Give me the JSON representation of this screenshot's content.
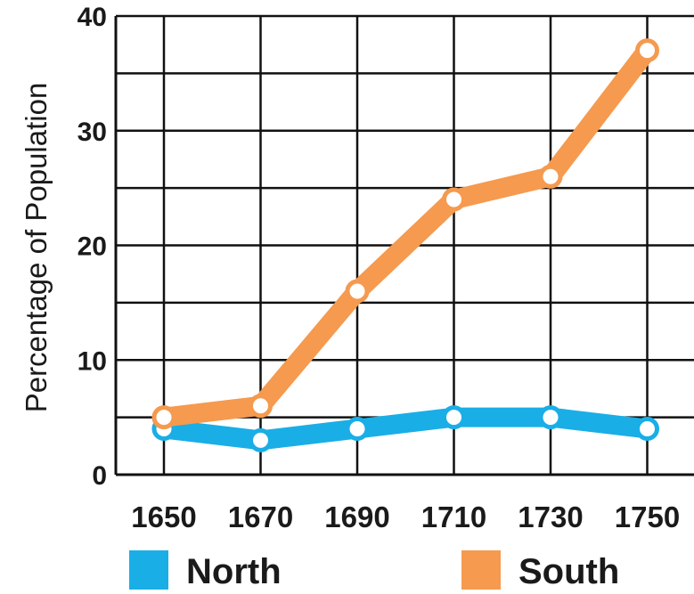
{
  "chart_data": {
    "type": "line",
    "title": "",
    "xlabel": "",
    "ylabel": "Percentage of Population",
    "x": [
      "1650",
      "1670",
      "1690",
      "1710",
      "1730",
      "1750"
    ],
    "ylim": [
      0,
      40
    ],
    "y_ticks": [
      "0",
      "10",
      "20",
      "30",
      "40"
    ],
    "grid": true,
    "legend_position": "bottom",
    "series": [
      {
        "name": "North",
        "color": "#1aaee6",
        "values": [
          4,
          3,
          4,
          5,
          5,
          4
        ]
      },
      {
        "name": "South",
        "color": "#f59a4e",
        "values": [
          5,
          6,
          16,
          24,
          26,
          37
        ]
      }
    ]
  }
}
